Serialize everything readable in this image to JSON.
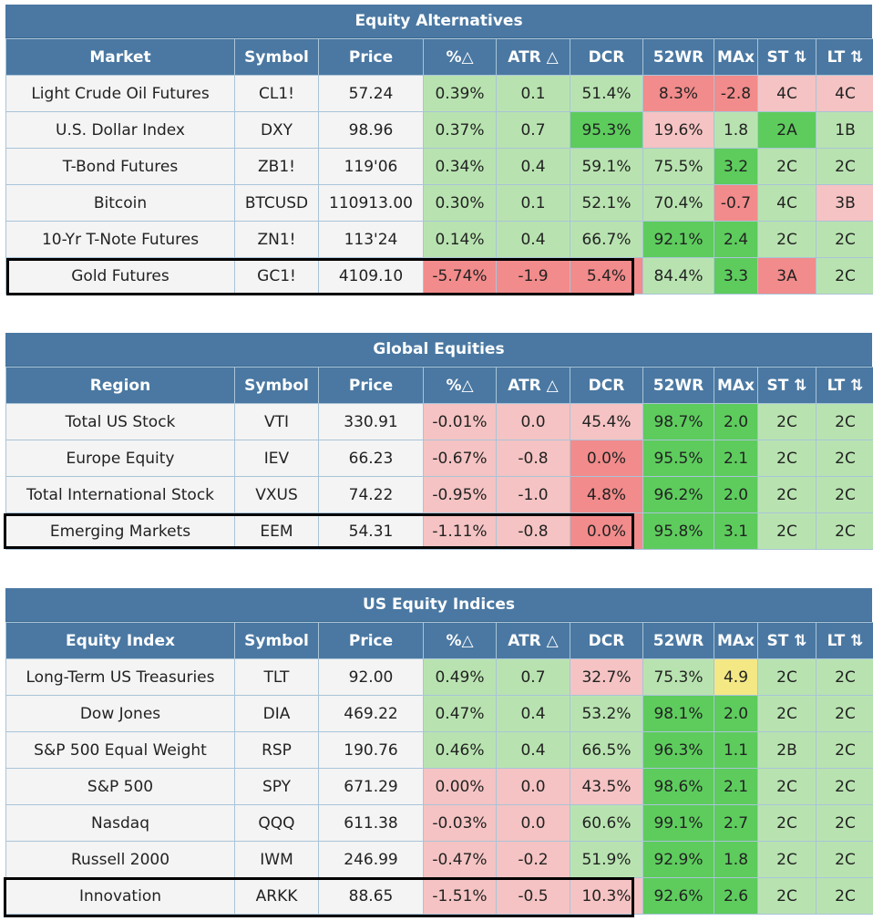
{
  "colors": {
    "header": "#4a78a2",
    "neutral": "#f4f4f4",
    "light_green": "#b8e3b0",
    "green": "#5dcc5d",
    "light_red": "#f5c3c3",
    "red": "#f28b8b",
    "yellow": "#f3e884"
  },
  "columns": [
    "%△",
    "ATR △",
    "DCR",
    "52WR",
    "MAx",
    "ST ⇅",
    "LT ⇅"
  ],
  "tables": [
    {
      "title": "Equity Alternatives",
      "first_col": "Market",
      "symbol_col": "Symbol",
      "price_col": "Price",
      "rows": [
        {
          "name": "Light Crude Oil Futures",
          "sym": "CL1!",
          "price": "57.24",
          "pct": "0.39%",
          "atr": "0.1",
          "dcr": "51.4%",
          "wr": "8.3%",
          "max": "-2.8",
          "st": "4C",
          "lt": "4C",
          "c": [
            "lg",
            "lg",
            "lg",
            "r",
            "r",
            "lr",
            "lr"
          ]
        },
        {
          "name": "U.S. Dollar Index",
          "sym": "DXY",
          "price": "98.96",
          "pct": "0.37%",
          "atr": "0.7",
          "dcr": "95.3%",
          "wr": "19.6%",
          "max": "1.8",
          "st": "2A",
          "lt": "1B",
          "c": [
            "lg",
            "lg",
            "g",
            "lr",
            "lg",
            "g",
            "lg"
          ]
        },
        {
          "name": "T-Bond Futures",
          "sym": "ZB1!",
          "price": "119'06",
          "pct": "0.34%",
          "atr": "0.4",
          "dcr": "59.1%",
          "wr": "75.5%",
          "max": "3.2",
          "st": "2C",
          "lt": "2C",
          "c": [
            "lg",
            "lg",
            "lg",
            "lg",
            "g",
            "lg",
            "lg"
          ]
        },
        {
          "name": "Bitcoin",
          "sym": "BTCUSD",
          "price": "110913.00",
          "pct": "0.30%",
          "atr": "0.1",
          "dcr": "52.1%",
          "wr": "70.4%",
          "max": "-0.7",
          "st": "4C",
          "lt": "3B",
          "c": [
            "lg",
            "lg",
            "lg",
            "lg",
            "r",
            "lg",
            "lr"
          ]
        },
        {
          "name": "10-Yr T-Note Futures",
          "sym": "ZN1!",
          "price": "113'24",
          "pct": "0.14%",
          "atr": "0.4",
          "dcr": "66.7%",
          "wr": "92.1%",
          "max": "2.4",
          "st": "2C",
          "lt": "2C",
          "c": [
            "lg",
            "lg",
            "lg",
            "g",
            "g",
            "lg",
            "lg"
          ]
        },
        {
          "name": "Gold Futures",
          "sym": "GC1!",
          "price": "4109.10",
          "pct": "-5.74%",
          "atr": "-1.9",
          "dcr": "5.4%",
          "wr": "84.4%",
          "max": "3.3",
          "st": "3A",
          "lt": "2C",
          "c": [
            "r",
            "r",
            "r",
            "lg",
            "g",
            "r",
            "lg"
          ]
        }
      ]
    },
    {
      "title": "Global Equities",
      "first_col": "Region",
      "symbol_col": "Symbol",
      "price_col": "Price",
      "rows": [
        {
          "name": "Total US Stock",
          "sym": "VTI",
          "price": "330.91",
          "pct": "-0.01%",
          "atr": "0.0",
          "dcr": "45.4%",
          "wr": "98.7%",
          "max": "2.0",
          "st": "2C",
          "lt": "2C",
          "c": [
            "lr",
            "lr",
            "lr",
            "g",
            "g",
            "lg",
            "lg"
          ]
        },
        {
          "name": "Europe Equity",
          "sym": "IEV",
          "price": "66.23",
          "pct": "-0.67%",
          "atr": "-0.8",
          "dcr": "0.0%",
          "wr": "95.5%",
          "max": "2.1",
          "st": "2C",
          "lt": "2C",
          "c": [
            "lr",
            "lr",
            "r",
            "g",
            "g",
            "lg",
            "lg"
          ]
        },
        {
          "name": "Total International Stock",
          "sym": "VXUS",
          "price": "74.22",
          "pct": "-0.95%",
          "atr": "-1.0",
          "dcr": "4.8%",
          "wr": "96.2%",
          "max": "2.0",
          "st": "2C",
          "lt": "2C",
          "c": [
            "lr",
            "lr",
            "r",
            "g",
            "g",
            "lg",
            "lg"
          ]
        },
        {
          "name": "Emerging Markets",
          "sym": "EEM",
          "price": "54.31",
          "pct": "-1.11%",
          "atr": "-0.8",
          "dcr": "0.0%",
          "wr": "95.8%",
          "max": "3.1",
          "st": "2C",
          "lt": "2C",
          "c": [
            "lr",
            "lr",
            "r",
            "g",
            "g",
            "lg",
            "lg"
          ]
        }
      ]
    },
    {
      "title": "US Equity Indices",
      "first_col": "Equity Index",
      "symbol_col": "Symbol",
      "price_col": "Price",
      "rows": [
        {
          "name": "Long-Term US Treasuries",
          "sym": "TLT",
          "price": "92.00",
          "pct": "0.49%",
          "atr": "0.7",
          "dcr": "32.7%",
          "wr": "75.3%",
          "max": "4.9",
          "st": "2C",
          "lt": "2C",
          "c": [
            "lg",
            "lg",
            "lr",
            "lg",
            "y",
            "lg",
            "lg"
          ]
        },
        {
          "name": "Dow Jones",
          "sym": "DIA",
          "price": "469.22",
          "pct": "0.47%",
          "atr": "0.4",
          "dcr": "53.2%",
          "wr": "98.1%",
          "max": "2.0",
          "st": "2C",
          "lt": "2C",
          "c": [
            "lg",
            "lg",
            "lg",
            "g",
            "g",
            "lg",
            "lg"
          ]
        },
        {
          "name": "S&P 500 Equal Weight",
          "sym": "RSP",
          "price": "190.76",
          "pct": "0.46%",
          "atr": "0.4",
          "dcr": "66.5%",
          "wr": "96.3%",
          "max": "1.1",
          "st": "2B",
          "lt": "2C",
          "c": [
            "lg",
            "lg",
            "lg",
            "g",
            "g",
            "lg",
            "lg"
          ]
        },
        {
          "name": "S&P 500",
          "sym": "SPY",
          "price": "671.29",
          "pct": "0.00%",
          "atr": "0.0",
          "dcr": "43.5%",
          "wr": "98.6%",
          "max": "2.1",
          "st": "2C",
          "lt": "2C",
          "c": [
            "lr",
            "lr",
            "lr",
            "g",
            "g",
            "lg",
            "lg"
          ]
        },
        {
          "name": "Nasdaq",
          "sym": "QQQ",
          "price": "611.38",
          "pct": "-0.03%",
          "atr": "0.0",
          "dcr": "60.6%",
          "wr": "99.1%",
          "max": "2.7",
          "st": "2C",
          "lt": "2C",
          "c": [
            "lr",
            "lr",
            "lg",
            "g",
            "g",
            "lg",
            "lg"
          ]
        },
        {
          "name": "Russell 2000",
          "sym": "IWM",
          "price": "246.99",
          "pct": "-0.47%",
          "atr": "-0.2",
          "dcr": "51.9%",
          "wr": "92.9%",
          "max": "1.8",
          "st": "2C",
          "lt": "2C",
          "c": [
            "lr",
            "lr",
            "lg",
            "g",
            "g",
            "lg",
            "lg"
          ]
        },
        {
          "name": "Innovation",
          "sym": "ARKK",
          "price": "88.65",
          "pct": "-1.51%",
          "atr": "-0.5",
          "dcr": "10.3%",
          "wr": "92.6%",
          "max": "2.6",
          "st": "2C",
          "lt": "2C",
          "c": [
            "lr",
            "lr",
            "lr",
            "g",
            "g",
            "lg",
            "lg"
          ]
        }
      ]
    }
  ]
}
